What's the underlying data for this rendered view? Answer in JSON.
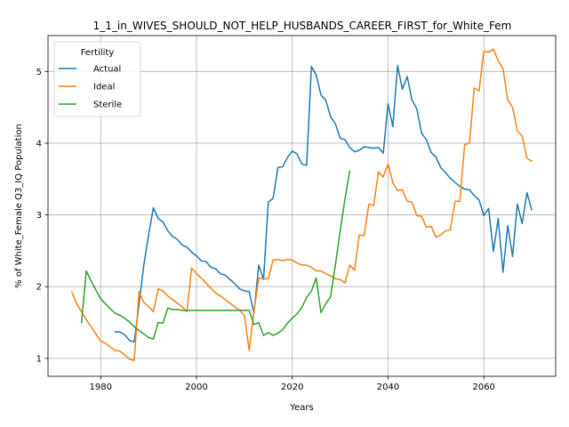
{
  "chart_data": {
    "type": "line",
    "title": "1_1_in_WIVES_SHOULD_NOT_HELP_HUSBANDS_CAREER_FIRST_for_White_Fem",
    "xlabel": "Years",
    "ylabel": "% of White_Female Q3_IQ Population",
    "xlim": [
      1969,
      2075
    ],
    "ylim": [
      0.75,
      5.5
    ],
    "xticks": [
      1980,
      2000,
      2020,
      2040,
      2060
    ],
    "yticks": [
      1,
      2,
      3,
      4,
      5
    ],
    "grid": true,
    "legend": {
      "title": "Fertility",
      "placement": "top-left"
    },
    "series": [
      {
        "name": "Actual",
        "color": "#1f77b4",
        "points": [
          [
            1983,
            1.37
          ],
          [
            1984,
            1.37
          ],
          [
            1985,
            1.33
          ],
          [
            1986,
            1.25
          ],
          [
            1987,
            1.23
          ],
          [
            1988,
            1.75
          ],
          [
            1989,
            2.3
          ],
          [
            1990,
            2.72
          ],
          [
            1991,
            3.1
          ],
          [
            1992,
            2.95
          ],
          [
            1993,
            2.9
          ],
          [
            1994,
            2.78
          ],
          [
            1995,
            2.7
          ],
          [
            1996,
            2.66
          ],
          [
            1997,
            2.58
          ],
          [
            1998,
            2.55
          ],
          [
            1999,
            2.48
          ],
          [
            2000,
            2.43
          ],
          [
            2001,
            2.36
          ],
          [
            2002,
            2.35
          ],
          [
            2003,
            2.27
          ],
          [
            2004,
            2.25
          ],
          [
            2005,
            2.18
          ],
          [
            2006,
            2.16
          ],
          [
            2007,
            2.1
          ],
          [
            2008,
            2.04
          ],
          [
            2009,
            1.97
          ],
          [
            2010,
            1.94
          ],
          [
            2011,
            1.93
          ],
          [
            2012,
            1.63
          ],
          [
            2013,
            2.3
          ],
          [
            2014,
            2.1
          ],
          [
            2015,
            3.18
          ],
          [
            2016,
            3.23
          ],
          [
            2017,
            3.66
          ],
          [
            2018,
            3.67
          ],
          [
            2019,
            3.8
          ],
          [
            2020,
            3.89
          ],
          [
            2021,
            3.85
          ],
          [
            2022,
            3.71
          ],
          [
            2023,
            3.69
          ],
          [
            2024,
            5.07
          ],
          [
            2025,
            4.95
          ],
          [
            2026,
            4.67
          ],
          [
            2027,
            4.6
          ],
          [
            2028,
            4.37
          ],
          [
            2029,
            4.27
          ],
          [
            2030,
            4.07
          ],
          [
            2031,
            4.05
          ],
          [
            2032,
            3.94
          ],
          [
            2033,
            3.88
          ],
          [
            2034,
            3.9
          ],
          [
            2035,
            3.95
          ],
          [
            2036,
            3.94
          ],
          [
            2037,
            3.93
          ],
          [
            2038,
            3.94
          ],
          [
            2039,
            3.86
          ],
          [
            2040,
            4.55
          ],
          [
            2041,
            4.23
          ],
          [
            2042,
            5.08
          ],
          [
            2043,
            4.75
          ],
          [
            2044,
            4.93
          ],
          [
            2045,
            4.6
          ],
          [
            2046,
            4.48
          ],
          [
            2047,
            4.14
          ],
          [
            2048,
            4.05
          ],
          [
            2049,
            3.87
          ],
          [
            2050,
            3.81
          ],
          [
            2051,
            3.66
          ],
          [
            2052,
            3.59
          ],
          [
            2053,
            3.51
          ],
          [
            2054,
            3.45
          ],
          [
            2055,
            3.4
          ],
          [
            2056,
            3.36
          ],
          [
            2057,
            3.35
          ],
          [
            2058,
            3.27
          ],
          [
            2059,
            3.21
          ],
          [
            2060,
            2.99
          ],
          [
            2061,
            3.09
          ],
          [
            2062,
            2.49
          ],
          [
            2063,
            2.95
          ],
          [
            2064,
            2.2
          ],
          [
            2065,
            2.85
          ],
          [
            2066,
            2.42
          ],
          [
            2067,
            3.15
          ],
          [
            2068,
            2.88
          ],
          [
            2069,
            3.31
          ],
          [
            2070,
            3.07
          ]
        ]
      },
      {
        "name": "Ideal",
        "color": "#ff7f0e",
        "points": [
          [
            1974,
            1.92
          ],
          [
            1975,
            1.76
          ],
          [
            1976,
            1.65
          ],
          [
            1977,
            1.54
          ],
          [
            1978,
            1.44
          ],
          [
            1979,
            1.34
          ],
          [
            1980,
            1.24
          ],
          [
            1981,
            1.21
          ],
          [
            1982,
            1.16
          ],
          [
            1983,
            1.11
          ],
          [
            1984,
            1.1
          ],
          [
            1985,
            1.05
          ],
          [
            1986,
            0.99
          ],
          [
            1987,
            0.97
          ],
          [
            1988,
            1.93
          ],
          [
            1989,
            1.78
          ],
          [
            1990,
            1.72
          ],
          [
            1991,
            1.65
          ],
          [
            1992,
            1.97
          ],
          [
            1993,
            1.94
          ],
          [
            1994,
            1.87
          ],
          [
            1995,
            1.82
          ],
          [
            1996,
            1.77
          ],
          [
            1997,
            1.72
          ],
          [
            1998,
            1.65
          ],
          [
            1999,
            2.26
          ],
          [
            2000,
            2.18
          ],
          [
            2001,
            2.12
          ],
          [
            2002,
            2.05
          ],
          [
            2003,
            1.98
          ],
          [
            2004,
            1.91
          ],
          [
            2005,
            1.87
          ],
          [
            2006,
            1.82
          ],
          [
            2007,
            1.77
          ],
          [
            2008,
            1.72
          ],
          [
            2009,
            1.67
          ],
          [
            2010,
            1.6
          ],
          [
            2011,
            1.11
          ],
          [
            2012,
            1.66
          ],
          [
            2013,
            2.12
          ],
          [
            2014,
            2.11
          ],
          [
            2015,
            2.11
          ],
          [
            2016,
            2.37
          ],
          [
            2017,
            2.38
          ],
          [
            2018,
            2.36
          ],
          [
            2019,
            2.38
          ],
          [
            2020,
            2.37
          ],
          [
            2021,
            2.33
          ],
          [
            2022,
            2.3
          ],
          [
            2023,
            2.3
          ],
          [
            2024,
            2.27
          ],
          [
            2025,
            2.22
          ],
          [
            2026,
            2.22
          ],
          [
            2027,
            2.18
          ],
          [
            2028,
            2.15
          ],
          [
            2029,
            2.11
          ],
          [
            2030,
            2.1
          ],
          [
            2031,
            2.05
          ],
          [
            2032,
            2.3
          ],
          [
            2033,
            2.23
          ],
          [
            2034,
            2.72
          ],
          [
            2035,
            2.71
          ],
          [
            2036,
            3.15
          ],
          [
            2037,
            3.13
          ],
          [
            2038,
            3.6
          ],
          [
            2039,
            3.53
          ],
          [
            2040,
            3.71
          ],
          [
            2041,
            3.45
          ],
          [
            2042,
            3.34
          ],
          [
            2043,
            3.35
          ],
          [
            2044,
            3.19
          ],
          [
            2045,
            3.18
          ],
          [
            2046,
            2.99
          ],
          [
            2047,
            2.98
          ],
          [
            2048,
            2.83
          ],
          [
            2049,
            2.84
          ],
          [
            2050,
            2.69
          ],
          [
            2051,
            2.72
          ],
          [
            2052,
            2.78
          ],
          [
            2053,
            2.79
          ],
          [
            2054,
            3.19
          ],
          [
            2055,
            3.19
          ],
          [
            2056,
            3.98
          ],
          [
            2057,
            4.0
          ],
          [
            2058,
            4.77
          ],
          [
            2059,
            4.73
          ],
          [
            2060,
            5.28
          ],
          [
            2061,
            5.27
          ],
          [
            2062,
            5.31
          ],
          [
            2063,
            5.15
          ],
          [
            2064,
            5.04
          ],
          [
            2065,
            4.6
          ],
          [
            2066,
            4.5
          ],
          [
            2067,
            4.17
          ],
          [
            2068,
            4.1
          ],
          [
            2069,
            3.79
          ],
          [
            2070,
            3.75
          ]
        ]
      },
      {
        "name": "Sterile",
        "color": "#2ca02c",
        "points": [
          [
            1976,
            1.5
          ],
          [
            1977,
            2.22
          ],
          [
            1978,
            2.08
          ],
          [
            1979,
            1.95
          ],
          [
            1980,
            1.83
          ],
          [
            1981,
            1.76
          ],
          [
            1982,
            1.69
          ],
          [
            1983,
            1.63
          ],
          [
            1984,
            1.6
          ],
          [
            1985,
            1.56
          ],
          [
            1986,
            1.51
          ],
          [
            1987,
            1.44
          ],
          [
            1988,
            1.39
          ],
          [
            1989,
            1.34
          ],
          [
            1990,
            1.29
          ],
          [
            1991,
            1.27
          ],
          [
            1992,
            1.5
          ],
          [
            1993,
            1.49
          ],
          [
            1994,
            1.7
          ],
          [
            1995,
            1.68
          ],
          [
            1996,
            1.68
          ],
          [
            1997,
            1.67
          ],
          [
            1998,
            1.67
          ],
          [
            1999,
            1.67
          ],
          [
            2000,
            1.67
          ],
          [
            2001,
            1.67
          ],
          [
            2002,
            1.67
          ],
          [
            2003,
            1.67
          ],
          [
            2004,
            1.67
          ],
          [
            2005,
            1.67
          ],
          [
            2006,
            1.67
          ],
          [
            2007,
            1.67
          ],
          [
            2008,
            1.67
          ],
          [
            2009,
            1.67
          ],
          [
            2010,
            1.67
          ],
          [
            2011,
            1.67
          ],
          [
            2012,
            1.47
          ],
          [
            2013,
            1.5
          ],
          [
            2014,
            1.32
          ],
          [
            2015,
            1.36
          ],
          [
            2016,
            1.32
          ],
          [
            2017,
            1.35
          ],
          [
            2018,
            1.4
          ],
          [
            2019,
            1.49
          ],
          [
            2020,
            1.56
          ],
          [
            2021,
            1.62
          ],
          [
            2022,
            1.71
          ],
          [
            2023,
            1.85
          ],
          [
            2024,
            1.94
          ],
          [
            2025,
            2.12
          ],
          [
            2026,
            1.64
          ],
          [
            2027,
            1.76
          ],
          [
            2028,
            1.86
          ],
          [
            2029,
            2.3
          ],
          [
            2030,
            2.77
          ],
          [
            2031,
            3.22
          ],
          [
            2032,
            3.61
          ]
        ]
      }
    ]
  }
}
